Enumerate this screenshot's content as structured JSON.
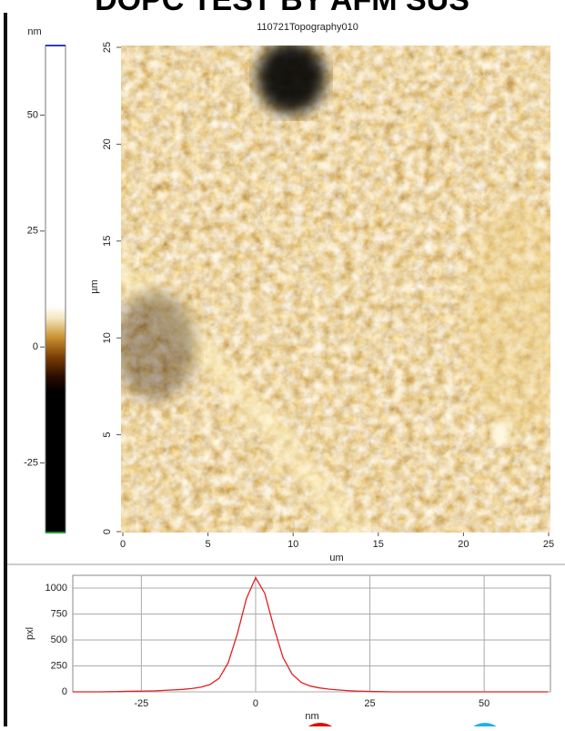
{
  "header": {
    "title": "DOPC TEST BY AFM SUS"
  },
  "chart_data": [
    {
      "type": "colorbar",
      "title": "nm",
      "ylim": [
        -40,
        65
      ],
      "yticks": [
        -25,
        0,
        25,
        50
      ]
    },
    {
      "type": "image",
      "title": "110721Topography010",
      "x_label": "um",
      "y_label": "µm",
      "xlim": [
        0,
        25
      ],
      "ylim": [
        0,
        25
      ],
      "xticks": [
        0,
        5,
        10,
        15,
        20,
        25
      ],
      "yticks": [
        0,
        5,
        10,
        15,
        20,
        25
      ]
    },
    {
      "type": "line",
      "x_label": "nm",
      "y_label": "pxl",
      "x": [
        -40,
        -38,
        -36,
        -34,
        -32,
        -30,
        -28,
        -26,
        -24,
        -22,
        -20,
        -18,
        -16,
        -14,
        -12,
        -10,
        -8,
        -6,
        -4,
        -2,
        0,
        2,
        4,
        6,
        8,
        10,
        12,
        14,
        16,
        18,
        20,
        22,
        24,
        26,
        28,
        30,
        32,
        34,
        36,
        38,
        40,
        42,
        44,
        46,
        48,
        50,
        52,
        54,
        56,
        58,
        60,
        62,
        64
      ],
      "series": [
        {
          "color": "#e02020",
          "values": [
            0,
            0,
            0,
            0,
            2,
            3,
            5,
            6,
            8,
            10,
            14,
            18,
            24,
            32,
            45,
            70,
            130,
            280,
            560,
            900,
            1100,
            950,
            620,
            330,
            170,
            90,
            55,
            38,
            26,
            18,
            12,
            8,
            5,
            3,
            2,
            0,
            0,
            0,
            0,
            0,
            0,
            0,
            0,
            0,
            0,
            0,
            0,
            0,
            0,
            0,
            0,
            0,
            0
          ]
        }
      ],
      "xlim": [
        -40,
        64.5
      ],
      "ylim": [
        0,
        1123
      ],
      "xticks": [
        -25,
        0,
        25,
        50
      ],
      "yticks": [
        0,
        250,
        500,
        750,
        1000
      ],
      "grid": true
    }
  ]
}
